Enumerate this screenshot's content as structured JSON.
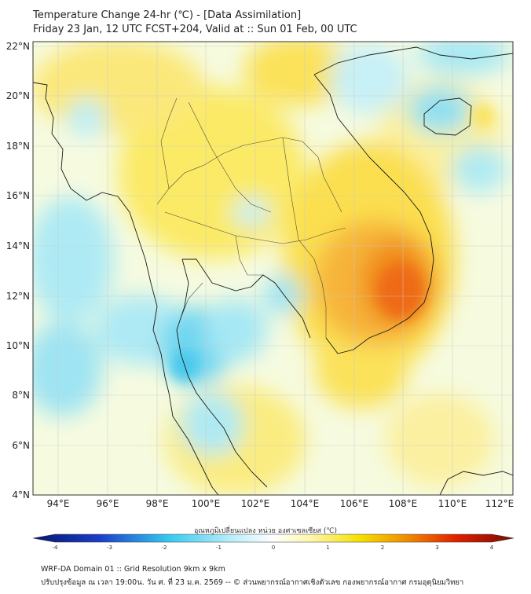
{
  "title": {
    "line1": "Temperature Change 24-hr (℃) - [Data Assimilation]",
    "line2": "Friday 23 Jan, 12 UTC FCST+204, Valid at :: Sun 01 Feb, 00 UTC"
  },
  "axes": {
    "lat_labels": [
      "22°N",
      "20°N",
      "18°N",
      "16°N",
      "14°N",
      "12°N",
      "10°N",
      "8°N",
      "6°N",
      "4°N"
    ],
    "lon_labels": [
      "94°E",
      "96°E",
      "98°E",
      "100°E",
      "102°E",
      "104°E",
      "106°E",
      "108°E",
      "110°E",
      "112°E"
    ]
  },
  "colorbar": {
    "label": "อุณหภูมิเปลี่ยนแปลง หน่วย องศาเซลเซียส (℃)",
    "ticks": [
      "-4",
      "-3",
      "-2",
      "-1",
      "0",
      "1",
      "2",
      "3",
      "4"
    ],
    "colors": {
      "cold_end": "#08166e",
      "mid_cold": "#35c8ef",
      "neutral": "#ffffff",
      "mid_warm": "#f5e000",
      "warm": "#f08a00",
      "hot_end": "#7a0a00"
    }
  },
  "footer": {
    "line1": "WRF-DA Domain 01 :: Grid Resolution 9km x 9km",
    "line2": "ปรับปรุงข้อมูล ณ เวลา 19:00น. วัน ศ. ที่ 23 ม.ค. 2569 -- © ส่วนพยากรณ์อากาศเชิงตัวเลข กองพยากรณ์อากาศ กรมอุตุนิยมวิทยา"
  }
}
